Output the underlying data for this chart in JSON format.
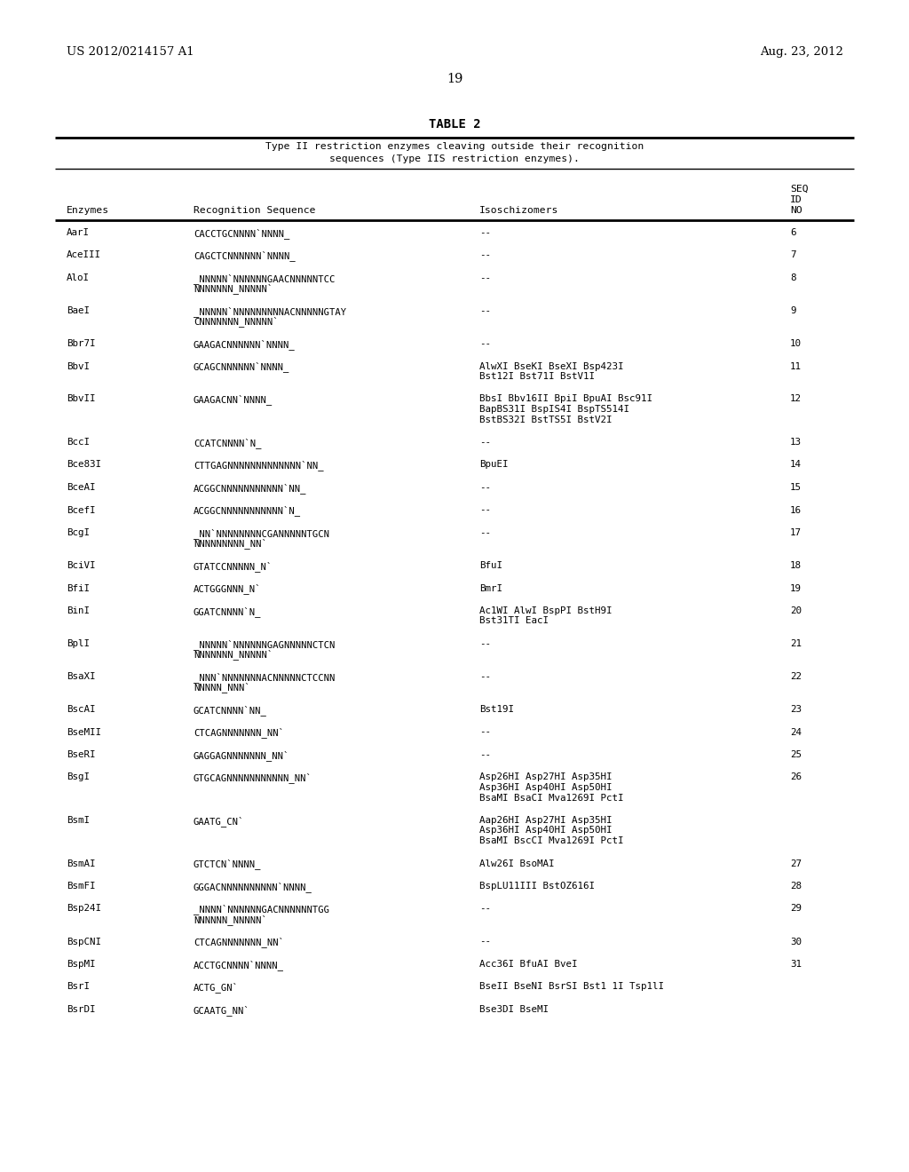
{
  "header_left": "US 2012/0214157 A1",
  "header_right": "Aug. 23, 2012",
  "page_number": "19",
  "table_title": "TABLE 2",
  "table_subtitle1": "Type II restriction enzymes cleaving outside their recognition",
  "table_subtitle2": "sequences (Type IIS restriction enzymes).",
  "rows": [
    [
      "AarI",
      "CACCTGCNNNN`NNNN_",
      "--",
      "6"
    ],
    [
      "AceIII",
      "CAGCTCNNNNNN`NNNN_",
      "--",
      "7"
    ],
    [
      "AloI",
      "_NNNNN`NNNNNNGAACNNNNNTCC\nNNNNNNN_NNNNN`",
      "--",
      "8"
    ],
    [
      "BaeI",
      "_NNNNN`NNNNNNNNNACNNNNNGTAY\nCNNNNNNN_NNNNN`",
      "--",
      "9"
    ],
    [
      "Bbr7I",
      "GAAGACNNNNNN`NNNN_",
      "--",
      "10"
    ],
    [
      "BbvI",
      "GCAGCNNNNNN`NNNN_",
      "AlwXI BseKI BseXI Bsp423I\nBst12I Bst71I BstV1I",
      "11"
    ],
    [
      "BbvII",
      "GAAGACNN`NNNN_",
      "BbsI Bbv16II BpiI BpuAI Bsc91I\nBapBS31I BspIS4I BspTS514I\nBstBS32I BstTS5I BstV2I",
      "12"
    ],
    [
      "BccI",
      "CCATCNNNN`N_",
      "--",
      "13"
    ],
    [
      "Bce83I",
      "CTTGAGNNNNNNNNNNNNN`NN_",
      "BpuEI",
      "14"
    ],
    [
      "BceAI",
      "ACGGCNNNNNNNNNNN`NN_",
      "--",
      "15"
    ],
    [
      "BcefI",
      "ACGGCNNNNNNNNNNN`N_",
      "--",
      "16"
    ],
    [
      "BcgI",
      "_NN`NNNNNNNNCGANNNNNTGCN\nNNNNNNNNN_NN`",
      "--",
      "17"
    ],
    [
      "BciVI",
      "GTATCCNNNNN_N`",
      "BfuI",
      "18"
    ],
    [
      "BfiI",
      "ACTGGGNNN_N`",
      "BmrI",
      "19"
    ],
    [
      "BinI",
      "GGATCNNNN`N_",
      "Ac1WI AlwI BspPI BstH9I\nBst31TI EacI",
      "20"
    ],
    [
      "BplI",
      "_NNNNN`NNNNNNGAGNNNNNCTCN\nNNNNNNN_NNNNN`",
      "--",
      "21"
    ],
    [
      "BsaXI",
      "_NNN`NNNNNNNACNNNNNCTCCNN\nNNNNN_NNN`",
      "--",
      "22"
    ],
    [
      "BscAI",
      "GCATCNNNN`NN_",
      "Bst19I",
      "23"
    ],
    [
      "BseMII",
      "CTCAGNNNNNNN_NN`",
      "--",
      "24"
    ],
    [
      "BseRI",
      "GAGGAGNNNNNNN_NN`",
      "--",
      "25"
    ],
    [
      "BsgI",
      "GTGCAGNNNNNNNNNNN_NN`",
      "Asp26HI Asp27HI Asp35HI\nAsp36HI Asp40HI Asp50HI\nBsaMI BsaCI Mva1269I PctI",
      "26"
    ],
    [
      "BsmI",
      "GAATG_CN`",
      "Aap26HI Asp27HI Asp35HI\nAsp36HI Asp40HI Asp50HI\nBsaMI BscCI Mva1269I PctI",
      ""
    ],
    [
      "BsmAI",
      "GTCTCN`NNNN_",
      "Alw26I BsoMAI",
      "27"
    ],
    [
      "BsmFI",
      "GGGACNNNNNNNNNN`NNNN_",
      "BspLU11III BstOZ616I",
      "28"
    ],
    [
      "Bsp24I",
      "_NNNN`NNNNNNGACNNNNNNTGG\nNNNNNN_NNNNN`",
      "--",
      "29"
    ],
    [
      "BspCNI",
      "CTCAGNNNNNNN_NN`",
      "--",
      "30"
    ],
    [
      "BspMI",
      "ACCTGCNNNN`NNNN_",
      "Acc36I BfuAI BveI",
      "31"
    ],
    [
      "BsrI",
      "ACTG_GN`",
      "BseII BseNI BsrSI Bst1 1I Tsp1lI",
      ""
    ],
    [
      "BsrDI",
      "GCAATG_NN`",
      "Bse3DI BseMI",
      ""
    ]
  ]
}
